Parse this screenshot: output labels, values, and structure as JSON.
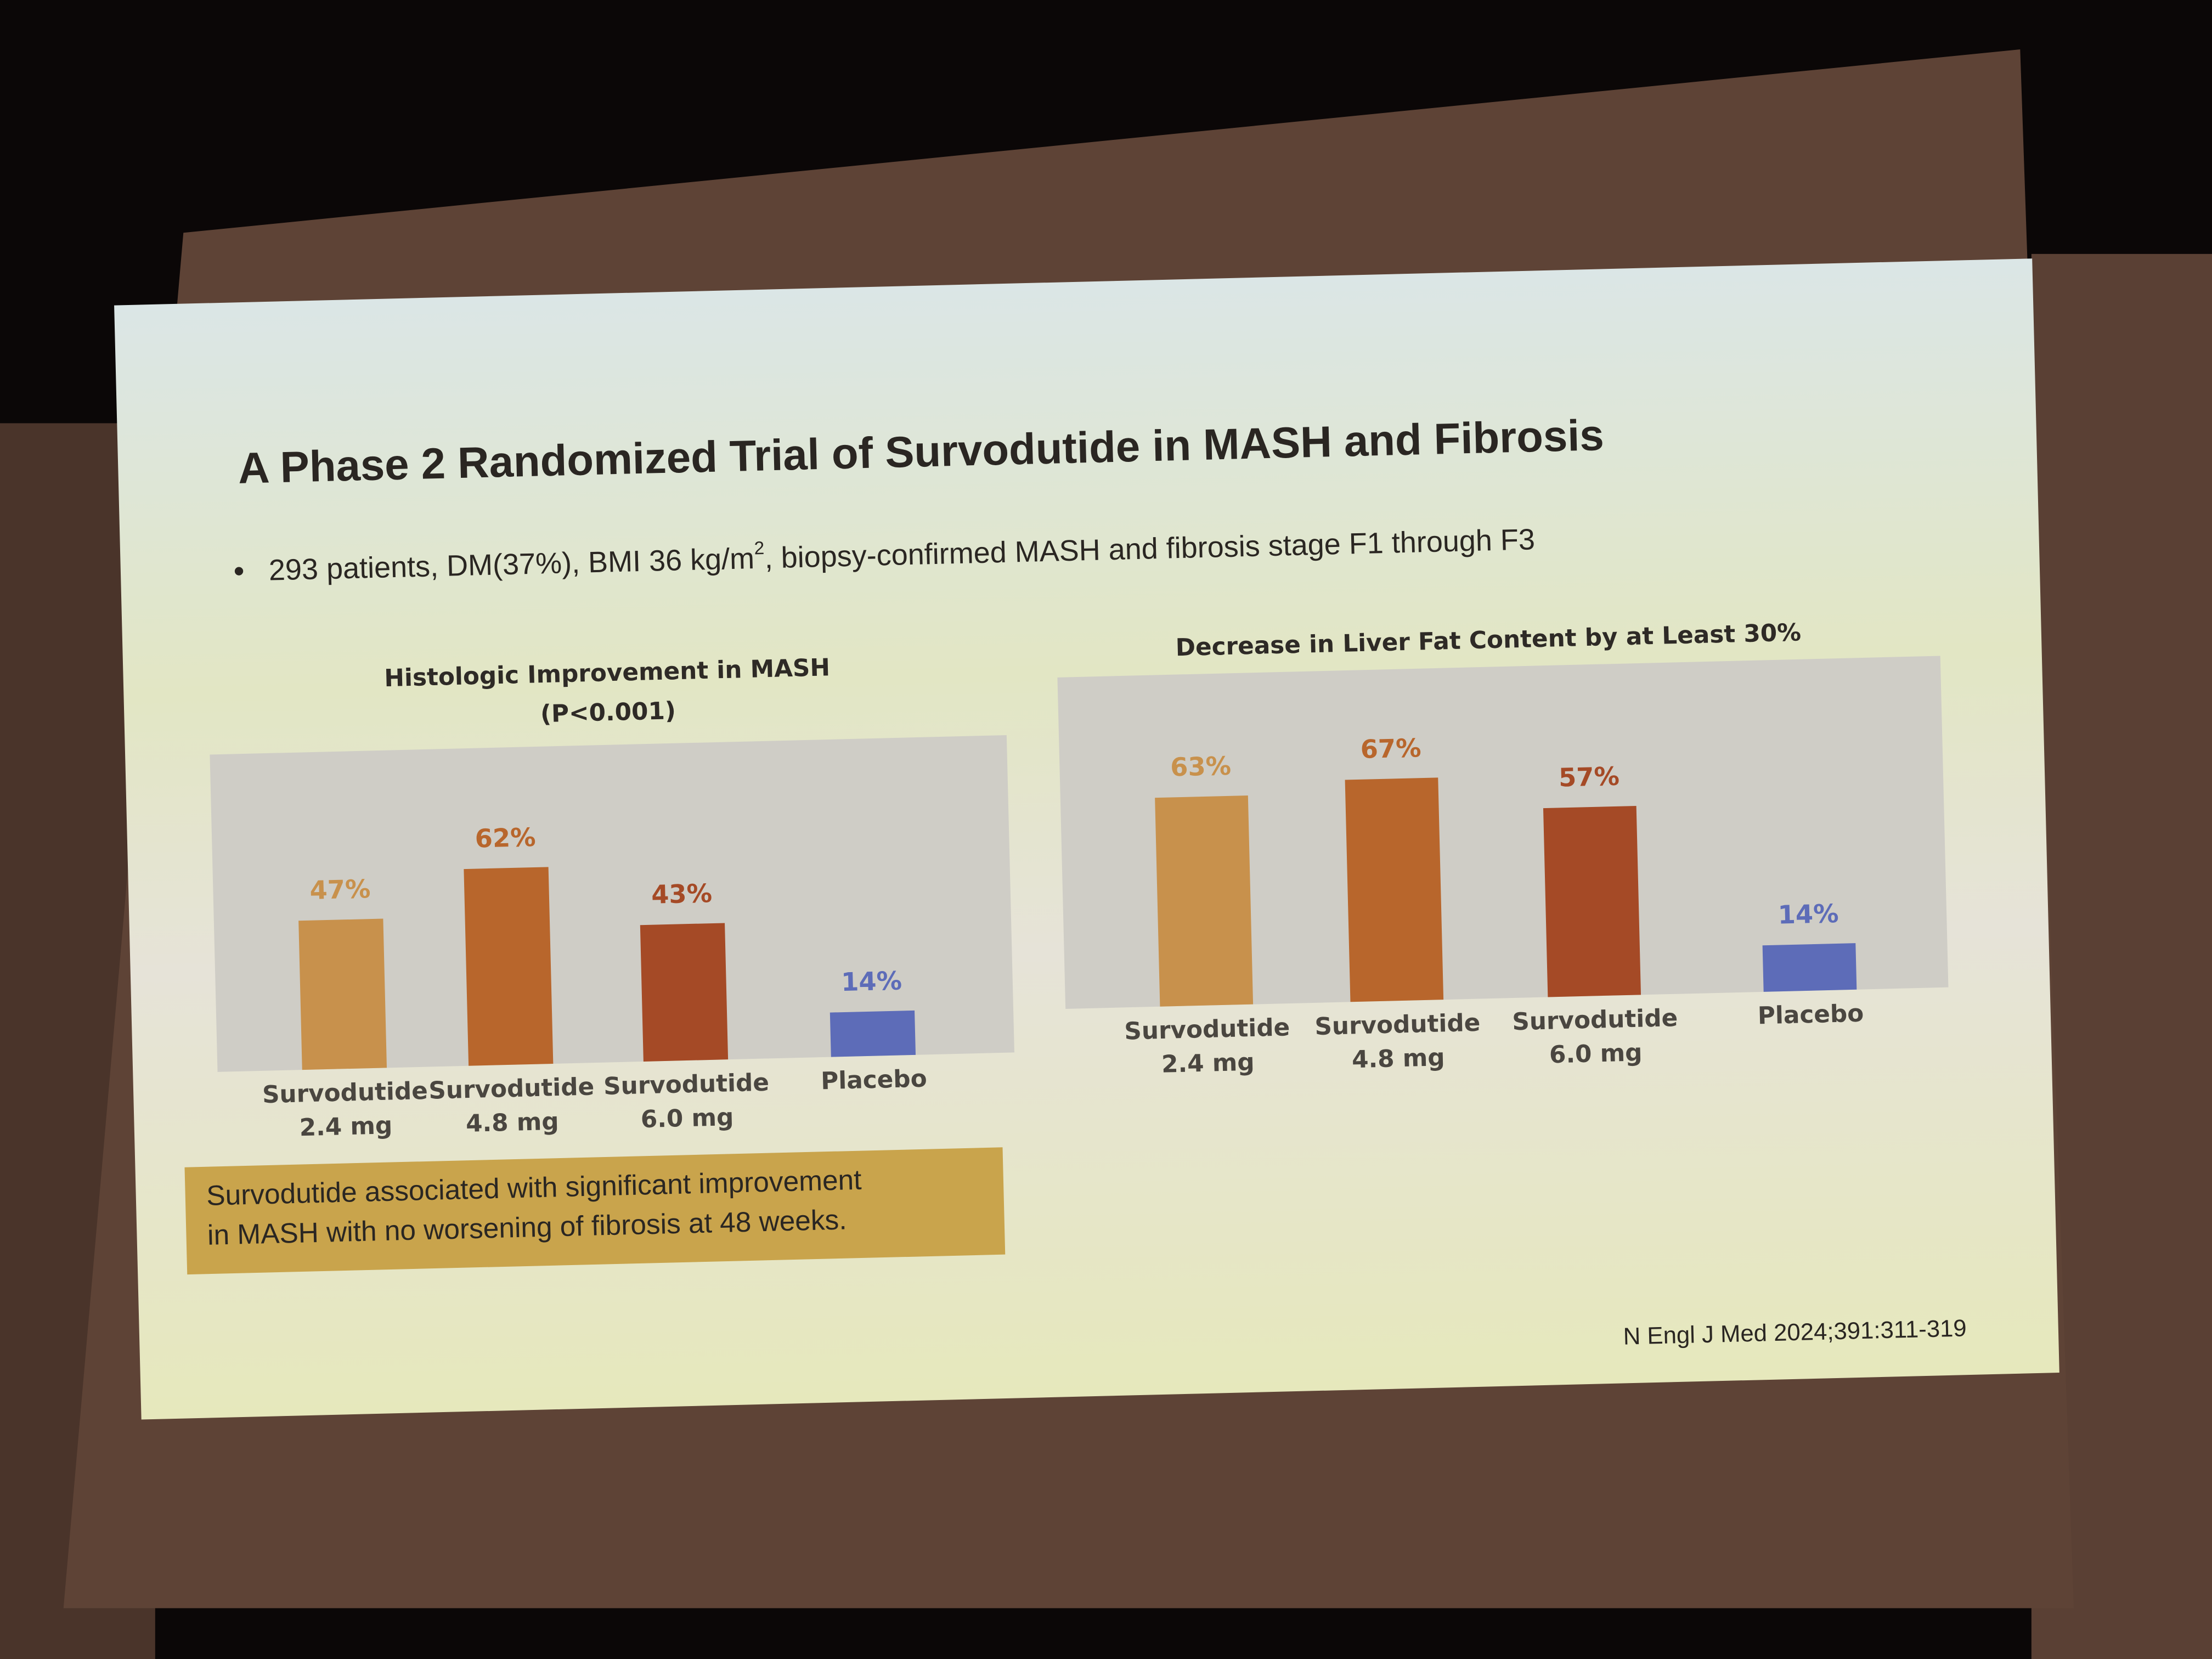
{
  "header": {
    "title": "A Phase 2 Randomized Trial of Survodutide in MASH and Fibrosis",
    "bullet": [
      "293 patients, DM(37%), BMI 36 kg/m",
      "2",
      ", biopsy-confirmed MASH and fibrosis stage F1 through F3"
    ]
  },
  "chart_data": [
    {
      "type": "bar",
      "title": "Histologic Improvement in MASH",
      "subtitle": "(P<0.001)",
      "categories": [
        [
          "Survodutide",
          "2.4 mg"
        ],
        [
          "Survodutide",
          "4.8 mg"
        ],
        [
          "Survodutide",
          "6.0 mg"
        ],
        [
          "Placebo"
        ]
      ],
      "values": [
        47,
        62,
        43,
        14
      ],
      "value_labels": [
        "47%",
        "62%",
        "43%",
        "14%"
      ],
      "colors": [
        "#c8914c",
        "#b8662c",
        "#a54a26",
        "#5d6cb8"
      ],
      "ylim": [
        0,
        100
      ]
    },
    {
      "type": "bar",
      "title": "Decrease in Liver Fat Content by at Least 30%",
      "categories": [
        [
          "Survodutide",
          "2.4 mg"
        ],
        [
          "Survodutide",
          "4.8 mg"
        ],
        [
          "Survodutide",
          "6.0 mg"
        ],
        [
          "Placebo"
        ]
      ],
      "values": [
        63,
        67,
        57,
        14
      ],
      "value_labels": [
        "63%",
        "67%",
        "57%",
        "14%"
      ],
      "colors": [
        "#c8914c",
        "#b8662c",
        "#a54a26",
        "#5d6cb8"
      ],
      "ylim": [
        0,
        100
      ]
    }
  ],
  "note": [
    "Survodutide associated with significant improvement",
    "in MASH with no worsening of fibrosis at 48 weeks."
  ],
  "citation": "N Engl J Med 2024;391:311-319"
}
